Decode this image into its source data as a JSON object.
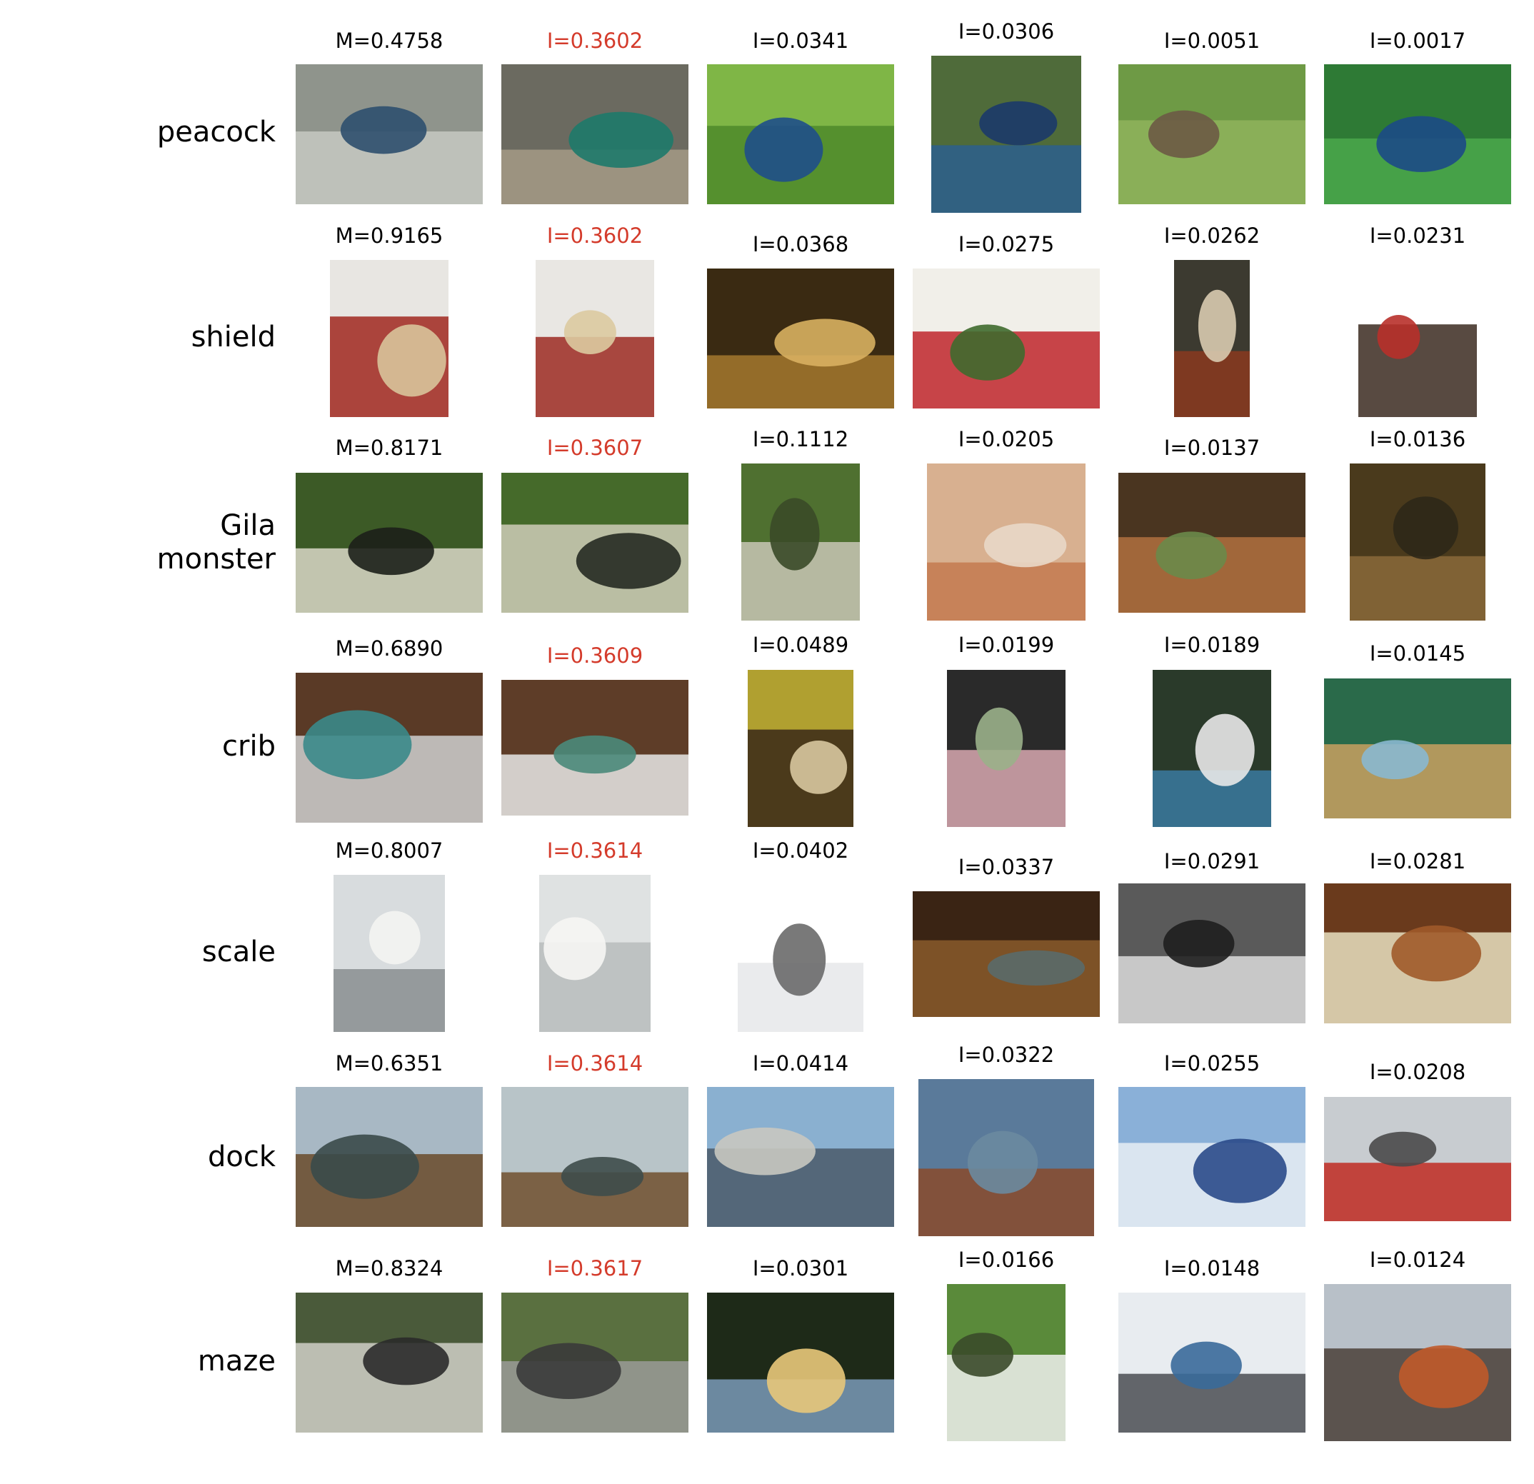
{
  "rows": [
    {
      "label": "peacock",
      "cells": [
        {
          "caption": "M=0.4758",
          "highlight": false,
          "palette": [
            "#8f948c",
            "#c7c9c2",
            "#2e4f6e"
          ]
        },
        {
          "caption": "I=0.3602",
          "highlight": true,
          "palette": [
            "#6b6a60",
            "#a49a86",
            "#1e7a6a"
          ]
        },
        {
          "caption": "I=0.0341",
          "highlight": false,
          "palette": [
            "#7fb646",
            "#4d8a2a",
            "#1f4f8a"
          ]
        },
        {
          "caption": "I=0.0306",
          "highlight": false,
          "palette": [
            "#4f6b3a",
            "#2c5f8e",
            "#1b3a6a"
          ]
        },
        {
          "caption": "I=0.0051",
          "highlight": false,
          "palette": [
            "#6e9a45",
            "#8fb35c",
            "#6c5a45"
          ]
        },
        {
          "caption": "I=0.0017",
          "highlight": false,
          "palette": [
            "#2e7a35",
            "#4aa84b",
            "#1c4a86"
          ]
        }
      ]
    },
    {
      "label": "shield",
      "cells": [
        {
          "caption": "M=0.9165",
          "highlight": false,
          "palette": [
            "#e8e6e2",
            "#a0271e",
            "#d8c49a"
          ]
        },
        {
          "caption": "I=0.3602",
          "highlight": true,
          "palette": [
            "#e9e7e3",
            "#9c2a22",
            "#dccaa0"
          ]
        },
        {
          "caption": "I=0.0368",
          "highlight": false,
          "palette": [
            "#3a2a12",
            "#a5782e",
            "#d8b060"
          ]
        },
        {
          "caption": "I=0.0275",
          "highlight": false,
          "palette": [
            "#f1efe9",
            "#c0262b",
            "#3f6a2e"
          ]
        },
        {
          "caption": "I=0.0262",
          "highlight": false,
          "palette": [
            "#3c3a30",
            "#8a3a1e",
            "#d8cbb0"
          ]
        },
        {
          "caption": "I=0.0231",
          "highlight": false,
          "palette": [
            "#ffffff",
            "#3b2a20",
            "#b8302a"
          ]
        }
      ]
    },
    {
      "label": "Gila\nmonster",
      "cells": [
        {
          "caption": "M=0.8171",
          "highlight": false,
          "palette": [
            "#3c5a26",
            "#d9d8c8",
            "#1c1f1a"
          ]
        },
        {
          "caption": "I=0.3607",
          "highlight": true,
          "palette": [
            "#456a2a",
            "#cfcdb8",
            "#262a22"
          ]
        },
        {
          "caption": "I=0.1112",
          "highlight": false,
          "palette": [
            "#4f7030",
            "#c8c6b5",
            "#3a4a28"
          ]
        },
        {
          "caption": "I=0.0205",
          "highlight": false,
          "palette": [
            "#d8b090",
            "#c47a50",
            "#e9d8c8"
          ]
        },
        {
          "caption": "I=0.0137",
          "highlight": false,
          "palette": [
            "#4a3520",
            "#b0703f",
            "#6a8a4a"
          ]
        },
        {
          "caption": "I=0.0136",
          "highlight": false,
          "palette": [
            "#4a3a1c",
            "#8a6a3a",
            "#2e2818"
          ]
        }
      ]
    },
    {
      "label": "crib",
      "cells": [
        {
          "caption": "M=0.6890",
          "highlight": false,
          "palette": [
            "#5a3a26",
            "#cfd0d0",
            "#3a8a8a"
          ]
        },
        {
          "caption": "I=0.3609",
          "highlight": true,
          "palette": [
            "#5e3d28",
            "#e8e8e6",
            "#4a8a7a"
          ]
        },
        {
          "caption": "I=0.0489",
          "highlight": false,
          "palette": [
            "#b0a030",
            "#3a2818",
            "#d8c8a0"
          ]
        },
        {
          "caption": "I=0.0199",
          "highlight": false,
          "palette": [
            "#2a2a2a",
            "#d8a8b0",
            "#9ab08a"
          ]
        },
        {
          "caption": "I=0.0189",
          "highlight": false,
          "palette": [
            "#2a3a2a",
            "#3a7aa0",
            "#e8e8e8"
          ]
        },
        {
          "caption": "I=0.0145",
          "highlight": false,
          "palette": [
            "#2a6a4a",
            "#c9a060",
            "#8ab8d0"
          ]
        }
      ]
    },
    {
      "label": "scale",
      "cells": [
        {
          "caption": "M=0.8007",
          "highlight": false,
          "palette": [
            "#d8dcde",
            "#8a8e90",
            "#f4f4f2"
          ]
        },
        {
          "caption": "I=0.3614",
          "highlight": true,
          "palette": [
            "#dfe2e2",
            "#b8bcbc",
            "#f6f6f4"
          ]
        },
        {
          "caption": "I=0.0402",
          "highlight": false,
          "palette": [
            "#ffffff",
            "#e6e8ea",
            "#6a6a6a"
          ]
        },
        {
          "caption": "I=0.0337",
          "highlight": false,
          "palette": [
            "#3a2414",
            "#8a5a2a",
            "#5a6a6a"
          ]
        },
        {
          "caption": "I=0.0291",
          "highlight": false,
          "palette": [
            "#5a5a5a",
            "#dcdcdc",
            "#1e1e1e"
          ]
        },
        {
          "caption": "I=0.0281",
          "highlight": false,
          "palette": [
            "#6a3a1c",
            "#e8e0c0",
            "#a05a2a"
          ]
        }
      ]
    },
    {
      "label": "dock",
      "cells": [
        {
          "caption": "M=0.6351",
          "highlight": false,
          "palette": [
            "#a8b8c4",
            "#6a4a2a",
            "#3a4a4a"
          ]
        },
        {
          "caption": "I=0.3614",
          "highlight": true,
          "palette": [
            "#b8c4c8",
            "#70502e",
            "#3e4c4a"
          ]
        },
        {
          "caption": "I=0.0414",
          "highlight": false,
          "palette": [
            "#8ab0d0",
            "#4a5a6a",
            "#c8c8c0"
          ]
        },
        {
          "caption": "I=0.0322",
          "highlight": false,
          "palette": [
            "#5a7a9a",
            "#8a4a2a",
            "#6a8aa0"
          ]
        },
        {
          "caption": "I=0.0255",
          "highlight": false,
          "palette": [
            "#8ab0d8",
            "#e8eef4",
            "#2a4a8a"
          ]
        },
        {
          "caption": "I=0.0208",
          "highlight": false,
          "palette": [
            "#c8ccd0",
            "#c02a22",
            "#4a4a4a"
          ]
        }
      ]
    },
    {
      "label": "maze",
      "cells": [
        {
          "caption": "M=0.8324",
          "highlight": false,
          "palette": [
            "#4a5a3a",
            "#d0d0c8",
            "#2a2a2a"
          ]
        },
        {
          "caption": "I=0.3617",
          "highlight": true,
          "palette": [
            "#5a7040",
            "#9a9a98",
            "#3a3a3a"
          ]
        },
        {
          "caption": "I=0.0301",
          "highlight": false,
          "palette": [
            "#1e2a18",
            "#7a9ab8",
            "#e8c87a"
          ]
        },
        {
          "caption": "I=0.0166",
          "highlight": false,
          "palette": [
            "#5a8a3a",
            "#f0f0ee",
            "#3a4a2a"
          ]
        },
        {
          "caption": "I=0.0148",
          "highlight": false,
          "palette": [
            "#e8ecf0",
            "#4a4e52",
            "#3a6a9a"
          ]
        },
        {
          "caption": "I=0.0124",
          "highlight": false,
          "palette": [
            "#b8c0c8",
            "#4a4038",
            "#c05a2a"
          ]
        }
      ]
    }
  ]
}
